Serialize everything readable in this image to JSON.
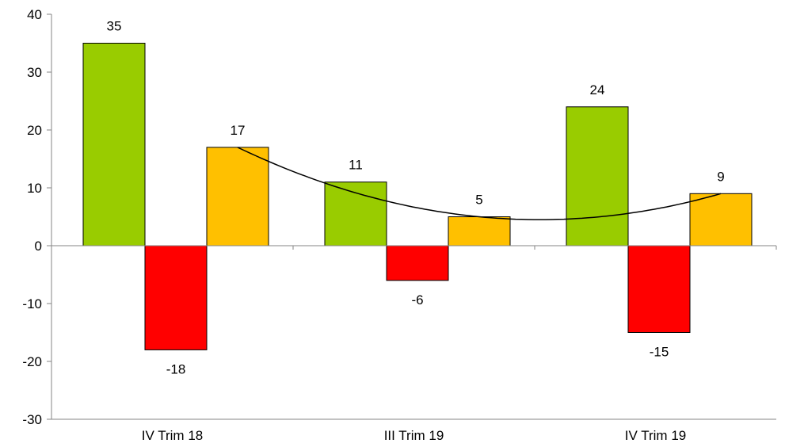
{
  "chart_data": {
    "type": "bar",
    "categories": [
      "IV Trim 18",
      "III Trim 19",
      "IV Trim 19"
    ],
    "series": [
      {
        "color": "#99CC00",
        "values": [
          35,
          11,
          24
        ]
      },
      {
        "color": "#FF0000",
        "values": [
          -18,
          -6,
          -15
        ]
      },
      {
        "color": "#FFC000",
        "values": [
          17,
          5,
          9
        ]
      }
    ],
    "trendline": {
      "type": "polynomial",
      "series_index": 2,
      "color": "#000000"
    },
    "ylim": [
      -30,
      40
    ],
    "yticks": [
      -30,
      -20,
      -10,
      0,
      10,
      20,
      30,
      40
    ],
    "ytick_labels": [
      "-30",
      "-20",
      "-10",
      "0",
      "10",
      "20",
      "30",
      "40"
    ],
    "data_labels": [
      [
        "35",
        "11",
        "24"
      ],
      [
        "-18",
        "-6",
        "-15"
      ],
      [
        "17",
        "5",
        "9"
      ]
    ],
    "grid": false,
    "legend": "none",
    "title": "",
    "xlabel": "",
    "ylabel": ""
  }
}
